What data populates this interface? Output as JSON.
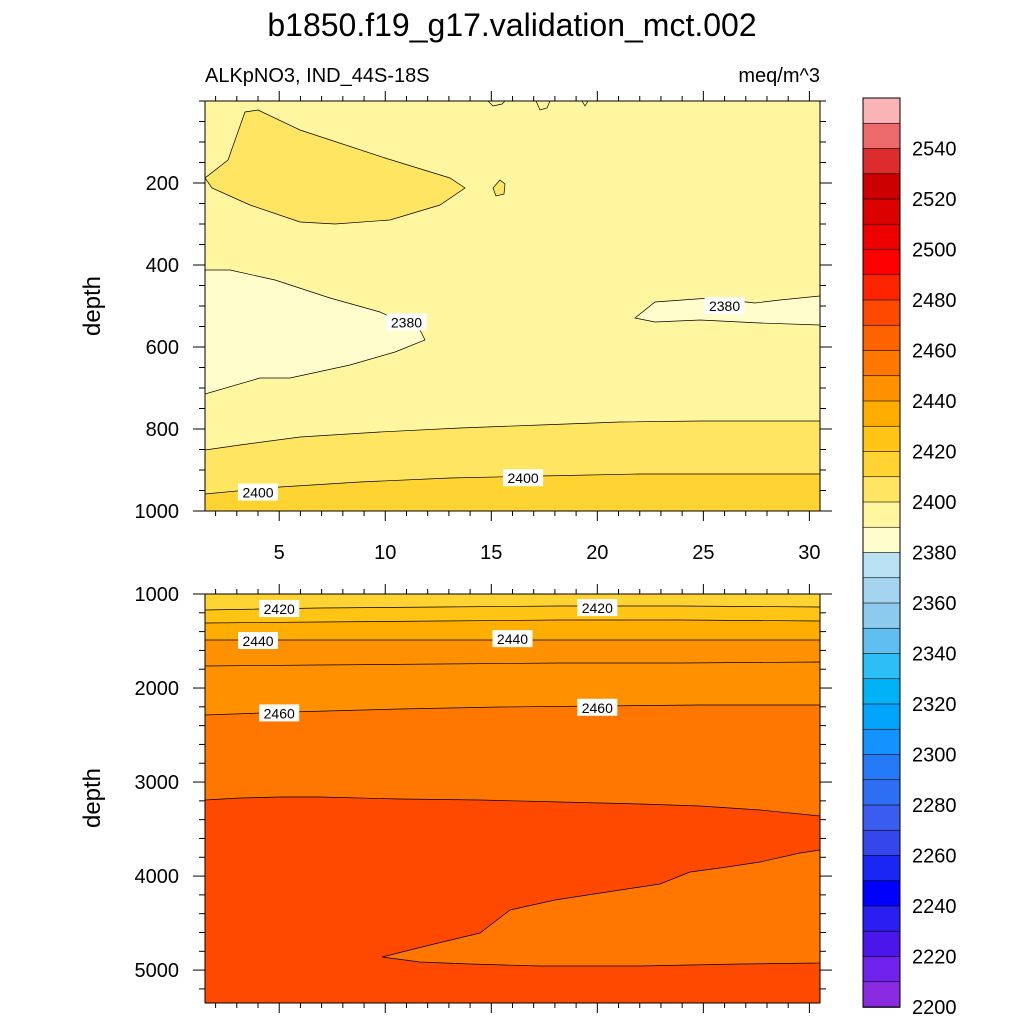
{
  "chart_data": {
    "type": "contour",
    "title": "b1850.f19_g17.validation_mct.002",
    "subtitle_left": "ALKpNO3, IND_44S-18S",
    "subtitle_right": "meq/m^3",
    "colors": {
      "pale_yellow": "#fffdcc",
      "light_yellow": "#fff69f",
      "yellow": "#ffe561",
      "gold": "#ffd332",
      "amber": "#ffc414",
      "orange_light": "#ffae00",
      "orange": "#ff9100",
      "orange_dark": "#ff7600",
      "red_orange": "#ff4800"
    },
    "panels": [
      {
        "ylabel": "depth",
        "ylim": [
          1000,
          0
        ],
        "yticks": [
          "200",
          "400",
          "600",
          "800",
          "1000"
        ],
        "xlim": [
          1.5,
          30.5
        ],
        "xticks": [
          "5",
          "10",
          "15",
          "20",
          "25",
          "30"
        ],
        "contour_labels": [
          {
            "text": "2380",
            "x": 11,
            "y": 540
          },
          {
            "text": "2380",
            "x": 26,
            "y": 500
          },
          {
            "text": "2400",
            "x": 4,
            "y": 955
          },
          {
            "text": "2400",
            "x": 16.5,
            "y": 920
          }
        ]
      },
      {
        "ylabel": "depth",
        "ylim": [
          5350,
          1000
        ],
        "yticks": [
          "1000",
          "2000",
          "3000",
          "4000",
          "5000"
        ],
        "xlim": [
          1.5,
          30.5
        ],
        "contour_labels": [
          {
            "text": "2420",
            "x": 5,
            "y": 1160
          },
          {
            "text": "2420",
            "x": 20,
            "y": 1150
          },
          {
            "text": "2440",
            "x": 4,
            "y": 1500
          },
          {
            "text": "2440",
            "x": 16,
            "y": 1480
          },
          {
            "text": "2460",
            "x": 5,
            "y": 2270
          },
          {
            "text": "2460",
            "x": 20,
            "y": 2210
          }
        ]
      }
    ],
    "colorbar": {
      "labels": [
        "2200",
        "2220",
        "2240",
        "2260",
        "2280",
        "2300",
        "2320",
        "2340",
        "2360",
        "2380",
        "2400",
        "2420",
        "2440",
        "2460",
        "2480",
        "2500",
        "2520",
        "2540"
      ],
      "colors": [
        "#fbb4b6",
        "#ec6a6c",
        "#dd2c2d",
        "#cc0000",
        "#dd0000",
        "#ee0000",
        "#ff0000",
        "#ff2400",
        "#ff4800",
        "#ff6300",
        "#ff7600",
        "#ff9100",
        "#ffae00",
        "#ffc414",
        "#ffd332",
        "#ffe561",
        "#fff69f",
        "#fffdcc",
        "#b9e1f3",
        "#a4d4ef",
        "#8ccaee",
        "#5ebff0",
        "#2bbff5",
        "#00b3f7",
        "#00a4fb",
        "#1393ff",
        "#2479f6",
        "#2e6ef3",
        "#3b5cf0",
        "#3546ec",
        "#1a26f3",
        "#0000ff",
        "#2a1ef0",
        "#4b16ea",
        "#7022ed",
        "#8a2be2"
      ]
    }
  }
}
